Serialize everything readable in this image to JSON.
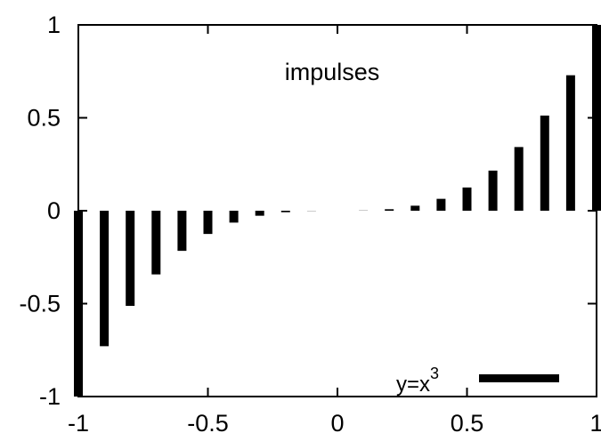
{
  "chart_data": {
    "type": "bar",
    "style": "impulses",
    "x": [
      -1.0,
      -0.9,
      -0.8,
      -0.7,
      -0.6,
      -0.5,
      -0.4,
      -0.3,
      -0.2,
      -0.1,
      0.0,
      0.1,
      0.2,
      0.3,
      0.4,
      0.5,
      0.6,
      0.7,
      0.8,
      0.9,
      1.0
    ],
    "series": [
      {
        "name": "y=x^3",
        "values": [
          -1.0,
          -0.729,
          -0.512,
          -0.343,
          -0.216,
          -0.125,
          -0.064,
          -0.027,
          -0.008,
          -0.001,
          0.0,
          0.001,
          0.008,
          0.027,
          0.064,
          0.125,
          0.216,
          0.343,
          0.512,
          0.729,
          1.0
        ],
        "color": "#000000"
      }
    ],
    "xlim": [
      -1,
      1
    ],
    "ylim": [
      -1,
      1
    ],
    "xticks": [
      "-1",
      "-0.5",
      "0",
      "0.5",
      "1"
    ],
    "yticks": [
      "1",
      "0.5",
      "0",
      "-0.5",
      "-1"
    ],
    "annotation": "impulses",
    "legend": {
      "placement": "bottom-right",
      "label_base": "y=x",
      "label_exponent": "3"
    },
    "grid": false,
    "xlabel": "",
    "ylabel": "",
    "title": ""
  }
}
